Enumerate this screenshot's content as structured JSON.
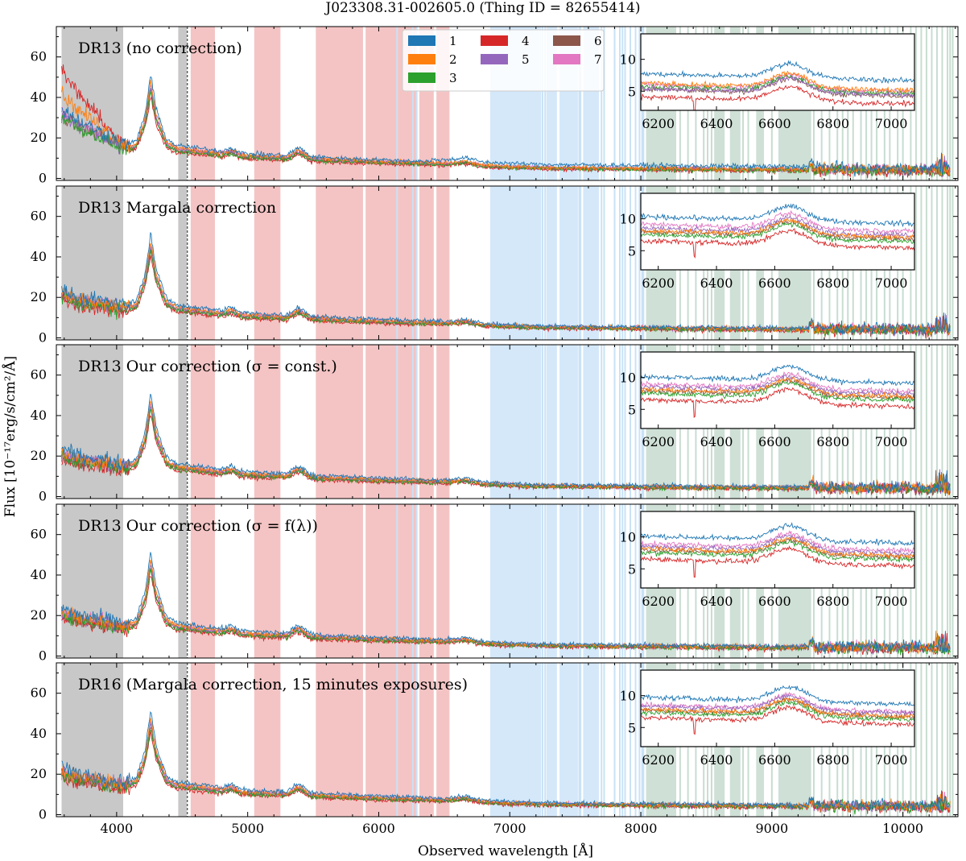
{
  "figure": {
    "title": "J023308.31-002605.0   (Thing ID = 82655414)",
    "xlabel": "Observed wavelength [Å]",
    "ylabel": "Flux [10⁻¹⁷erg/s/cm²/Å]"
  },
  "colors": {
    "series": [
      "#1f77b4",
      "#ff7f0e",
      "#2ca02c",
      "#d62728",
      "#9467bd",
      "#8c564b",
      "#e377c2"
    ],
    "gray_band": "#c8c8c8",
    "red_band": "#f4c4c4",
    "blue_band": "#d4e8fa",
    "green_band": "#cfe0d6",
    "blue_line": "#c9e2f6",
    "green_line": "#c8ddd1"
  },
  "legend": {
    "entries": [
      "1",
      "2",
      "3",
      "4",
      "5",
      "6",
      "7"
    ]
  },
  "chart_data": {
    "type": "line",
    "title": "J023308.31-002605.0   (Thing ID = 82655414)",
    "xlabel": "Observed wavelength [Å]",
    "ylabel": "Flux [10⁻¹⁷erg/s/cm²/Å]",
    "xlim": [
      3540,
      10420
    ],
    "ylim": [
      -1,
      75
    ],
    "xticks": [
      4000,
      5000,
      6000,
      7000,
      8000,
      9000,
      10000
    ],
    "xtick_labels": [
      "4000",
      "5000",
      "6000",
      "7000",
      "8000",
      "9000",
      "10000"
    ],
    "yticks": [
      0,
      20,
      40,
      60
    ],
    "ytick_labels": [
      "0",
      "20",
      "40",
      "60"
    ],
    "vline_x": 4540,
    "continuum_points": {
      "x": [
        3580,
        3700,
        3900,
        4050,
        4150,
        4220,
        4260,
        4300,
        4380,
        4460,
        4600,
        4800,
        4880,
        4950,
        5100,
        5300,
        5380,
        5420,
        5480,
        5600,
        6000,
        6500,
        6660,
        6800,
        7200,
        8000,
        9000,
        10000,
        10400
      ],
      "y": [
        22,
        19,
        17,
        15,
        17,
        30,
        48,
        32,
        18,
        15,
        14,
        12.5,
        14,
        11.5,
        11,
        10.5,
        14,
        13,
        10,
        9.5,
        8.5,
        7.5,
        8.5,
        6.5,
        5.5,
        5,
        4.5,
        4.5,
        4
      ]
    },
    "shaded_regions": {
      "gray": [
        [
          3580,
          4050
        ],
        [
          4470,
          4535
        ]
      ],
      "red": [
        [
          4565,
          4750
        ],
        [
          5050,
          5250
        ],
        [
          5520,
          5880
        ],
        [
          5900,
          6290
        ],
        [
          6310,
          6420
        ],
        [
          6440,
          6540
        ]
      ],
      "blue": [
        [
          6850,
          7240
        ],
        [
          7280,
          7360
        ],
        [
          7380,
          7520
        ],
        [
          7560,
          7680
        ]
      ],
      "green": [
        [
          8040,
          8270
        ],
        [
          8560,
          8640
        ],
        [
          8680,
          8760
        ],
        [
          8880,
          8940
        ],
        [
          9050,
          9300
        ]
      ],
      "blue_lines": [
        6140,
        6260,
        6290,
        7250,
        7270,
        7530,
        7540,
        7700,
        7720,
        7800,
        7840,
        7860,
        7880,
        7920,
        7960,
        7990,
        8010,
        8020
      ],
      "green_lines": [
        8300,
        8360,
        8420,
        8480,
        8510,
        8540,
        8780,
        8820,
        9000,
        9320,
        9380,
        9440,
        9500,
        9540,
        9580,
        9620,
        9680,
        9720,
        9760,
        9800,
        9860,
        9900,
        9960,
        10000,
        10060,
        10100,
        10140,
        10180,
        10220,
        10260,
        10300,
        10340,
        10360,
        10380
      ]
    },
    "inset": {
      "xlim": [
        6140,
        7080
      ],
      "ylim": [
        2,
        14
      ],
      "xticks": [
        6200,
        6400,
        6600,
        6800,
        7000
      ],
      "xtick_labels": [
        "6200",
        "6400",
        "6600",
        "6800",
        "7000"
      ],
      "yticks": [
        5,
        10
      ],
      "ytick_labels": [
        "5",
        "10"
      ],
      "peak_x": 6650,
      "green_regions": [
        [
          6140,
          6270
        ],
        [
          6560,
          6660
        ]
      ]
    },
    "panels": [
      {
        "label": "DR13 (no correction)",
        "blue_excess": 18,
        "inset_offsets": [
          7.2,
          5.7,
          5.2,
          3.6,
          4.9,
          4.8,
          5.5
        ]
      },
      {
        "label": "DR13 Margala correction",
        "blue_excess": 0,
        "inset_offsets": [
          9.8,
          7.6,
          7.0,
          6.0,
          8.0,
          7.4,
          8.6
        ]
      },
      {
        "label": "DR13 Our correction (σ = const.)",
        "blue_excess": 0,
        "inset_offsets": [
          9.6,
          7.6,
          7.0,
          6.0,
          8.0,
          7.4,
          8.4
        ]
      },
      {
        "label": "DR13 Our correction (σ = f(λ))",
        "blue_excess": 0,
        "inset_offsets": [
          9.6,
          7.6,
          7.0,
          6.0,
          8.0,
          7.4,
          8.4
        ]
      },
      {
        "label": "DR16 (Margala correction, 15 minutes exposures)",
        "blue_excess": 0,
        "inset_offsets": [
          9.2,
          7.3,
          6.8,
          6.0,
          7.8,
          7.2,
          8.0
        ]
      }
    ],
    "series": [
      {
        "name": "1"
      },
      {
        "name": "2"
      },
      {
        "name": "3"
      },
      {
        "name": "4"
      },
      {
        "name": "5"
      },
      {
        "name": "6"
      },
      {
        "name": "7"
      }
    ]
  }
}
